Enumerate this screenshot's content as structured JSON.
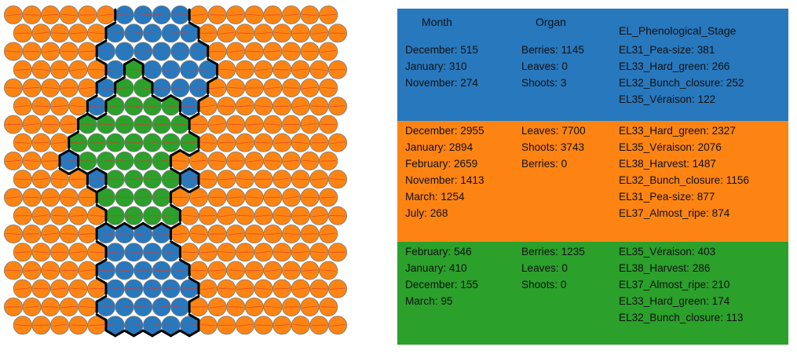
{
  "colors": {
    "blue": "#2878bd",
    "orange": "#fd8413",
    "green": "#2ba02b",
    "cell_stroke": "#7a7a7a",
    "boundary": "#000000",
    "weight_line": "#d93a2b"
  },
  "grid": {
    "columns": 18,
    "rows": 18,
    "cell_shape": "hexagon",
    "cluster_rows": [
      "OOOOOOBBBBOOOOOOOO",
      "OOOOOBBBBBOOOOOOOO",
      "OOOOOBBBBBBOOOOOOO",
      "OOOOOBGBBBBOOOOOOO",
      "OOOOOBGGBBBOOOOOOO",
      "OOOOBGGGGBOOOOOOOO",
      "OOOOGGGGGGOOOOOOOO",
      "OOOGGGGGGGOOOOOOOO",
      "OOOBGGGGGOOOOOOOOO",
      "OOOOBGGGGBOOOOOOOO",
      "OOOOOGGGGOOOOOOOOO",
      "OOOOOGGGGOOOOOOOOO",
      "OOOOOBBBBOOOOOOOOO",
      "OOOOOBBBBOOOOOOOOO",
      "OOOOOBBBBBOOOOOOOO",
      "OOOOOBBBBBOOOOOOOO",
      "OOOOOBBBBBOOOOOOOO",
      "OOOOOBBBBBOOOOOOOO"
    ]
  },
  "legend": {
    "headers": {
      "month": "Month",
      "organ": "Organ",
      "stage": "EL_Phenological_Stage"
    },
    "clusters": [
      {
        "color": "#2878bd",
        "month": [
          "December: 515",
          "January: 310",
          "November: 274"
        ],
        "organ": [
          "Berries: 1145",
          "Leaves: 0",
          "Shoots: 3"
        ],
        "stage": [
          "EL31_Pea-size: 381",
          "EL33_Hard_green: 266",
          "EL32_Bunch_closure: 252",
          "EL35_Véraison: 122"
        ]
      },
      {
        "color": "#fd8413",
        "month": [
          "December: 2955",
          "January: 2894",
          "February: 2659",
          "November: 1413",
          "March: 1254",
          "July: 268"
        ],
        "organ": [
          "Leaves: 7700",
          "Shoots: 3743",
          "Berries: 0"
        ],
        "stage": [
          "EL33_Hard_green: 2327",
          "EL35_Véraison: 2076",
          "EL38_Harvest: 1487",
          "EL32_Bunch_closure: 1156",
          "EL31_Pea-size: 877",
          "EL37_Almost_ripe: 874"
        ]
      },
      {
        "color": "#2ba02b",
        "month": [
          "February: 546",
          "January: 410",
          "December: 155",
          "March: 95"
        ],
        "organ": [
          "Berries: 1235",
          "Leaves: 0",
          "Shoots: 0"
        ],
        "stage": [
          "EL35_Véraison: 403",
          "EL38_Harvest: 286",
          "EL37_Almost_ripe: 210",
          "EL33_Hard_green: 174",
          "EL32_Bunch_closure: 113"
        ]
      }
    ]
  }
}
